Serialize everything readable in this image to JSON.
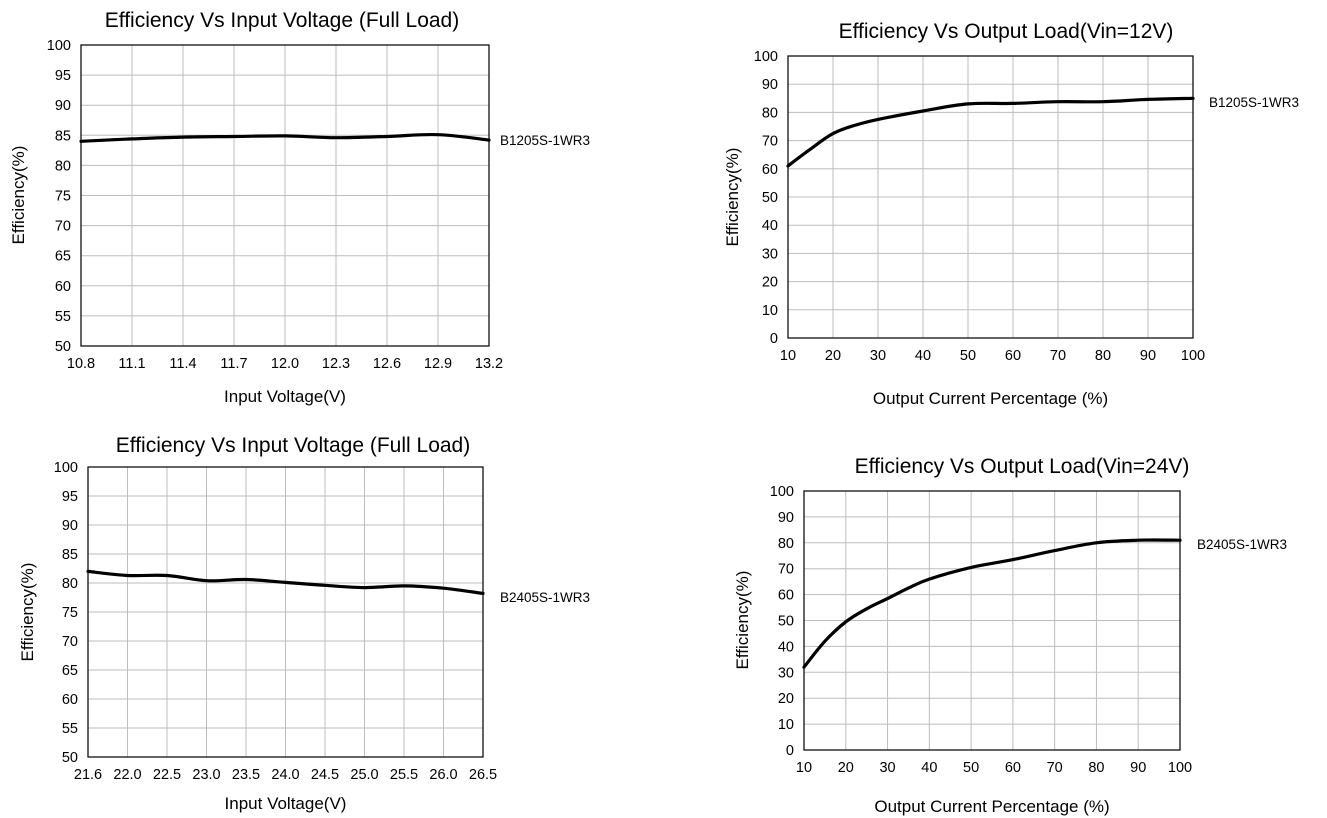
{
  "chart_data": [
    {
      "type": "line",
      "title": "Efficiency Vs Input Voltage (Full Load)",
      "xlabel": "Input Voltage(V)",
      "ylabel": "Efficiency(%)",
      "x_ticks": [
        "10.8",
        "11.1",
        "11.4",
        "11.7",
        "12.0",
        "12.3",
        "12.6",
        "12.9",
        "13.2"
      ],
      "y_ticks": [
        "50",
        "55",
        "60",
        "65",
        "70",
        "75",
        "80",
        "85",
        "90",
        "95",
        "100"
      ],
      "xlim": [
        10.8,
        13.2
      ],
      "ylim": [
        50,
        100
      ],
      "grid": true,
      "series": [
        {
          "name": "B1205S-1WR3",
          "x": [
            10.8,
            11.1,
            11.4,
            11.7,
            12.0,
            12.3,
            12.6,
            12.9,
            13.2
          ],
          "y": [
            84.0,
            84.4,
            84.7,
            84.8,
            84.9,
            84.6,
            84.8,
            85.1,
            84.2
          ]
        }
      ]
    },
    {
      "type": "line",
      "title": "Efficiency Vs Output Load(Vin=12V)",
      "xlabel": "Output Current Percentage (%)",
      "ylabel": "Efficiency(%)",
      "x_ticks": [
        "10",
        "20",
        "30",
        "40",
        "50",
        "60",
        "70",
        "80",
        "90",
        "100"
      ],
      "y_ticks": [
        "0",
        "10",
        "20",
        "30",
        "40",
        "50",
        "60",
        "70",
        "80",
        "90",
        "100"
      ],
      "xlim": [
        10,
        100
      ],
      "ylim": [
        0,
        100
      ],
      "grid": true,
      "series": [
        {
          "name": "B1205S-1WR3",
          "x": [
            10,
            15,
            20,
            25,
            30,
            40,
            50,
            60,
            70,
            80,
            90,
            100
          ],
          "y": [
            61,
            67,
            72.5,
            75.5,
            77.5,
            80.5,
            83,
            83.2,
            83.8,
            83.8,
            84.6,
            85
          ]
        }
      ]
    },
    {
      "type": "line",
      "title": "Efficiency Vs Input Voltage (Full Load)",
      "xlabel": "Input Voltage(V)",
      "ylabel": "Efficiency(%)",
      "x_ticks": [
        "21.6",
        "22.0",
        "22.5",
        "23.0",
        "23.5",
        "24.0",
        "24.5",
        "25.0",
        "25.5",
        "26.0",
        "26.5"
      ],
      "y_ticks": [
        "50",
        "55",
        "60",
        "65",
        "70",
        "75",
        "80",
        "85",
        "90",
        "95",
        "100"
      ],
      "xlim": [
        0,
        10
      ],
      "ylim": [
        50,
        100
      ],
      "grid": true,
      "series": [
        {
          "name": "B2405S-1WR3",
          "x": [
            "21.6",
            "22.0",
            "22.5",
            "23.0",
            "23.5",
            "24.0",
            "24.5",
            "25.0",
            "25.5",
            "26.0",
            "26.5"
          ],
          "y": [
            82.0,
            81.3,
            81.3,
            80.4,
            80.6,
            80.1,
            79.6,
            79.2,
            79.5,
            79.1,
            78.2
          ]
        }
      ]
    },
    {
      "type": "line",
      "title": "Efficiency Vs Output Load(Vin=24V)",
      "xlabel": "Output Current Percentage (%)",
      "ylabel": "Efficiency(%)",
      "x_ticks": [
        "10",
        "20",
        "30",
        "40",
        "50",
        "60",
        "70",
        "80",
        "90",
        "100"
      ],
      "y_ticks": [
        "0",
        "10",
        "20",
        "30",
        "40",
        "50",
        "60",
        "70",
        "80",
        "90",
        "100"
      ],
      "xlim": [
        10,
        100
      ],
      "ylim": [
        0,
        100
      ],
      "grid": true,
      "series": [
        {
          "name": "B2405S-1WR3",
          "x": [
            10,
            15,
            20,
            25,
            30,
            35,
            40,
            50,
            60,
            70,
            80,
            90,
            100
          ],
          "y": [
            32,
            42,
            49.5,
            54.5,
            58.5,
            62.5,
            66,
            70.5,
            73.5,
            77,
            80,
            81,
            81
          ]
        }
      ]
    }
  ]
}
